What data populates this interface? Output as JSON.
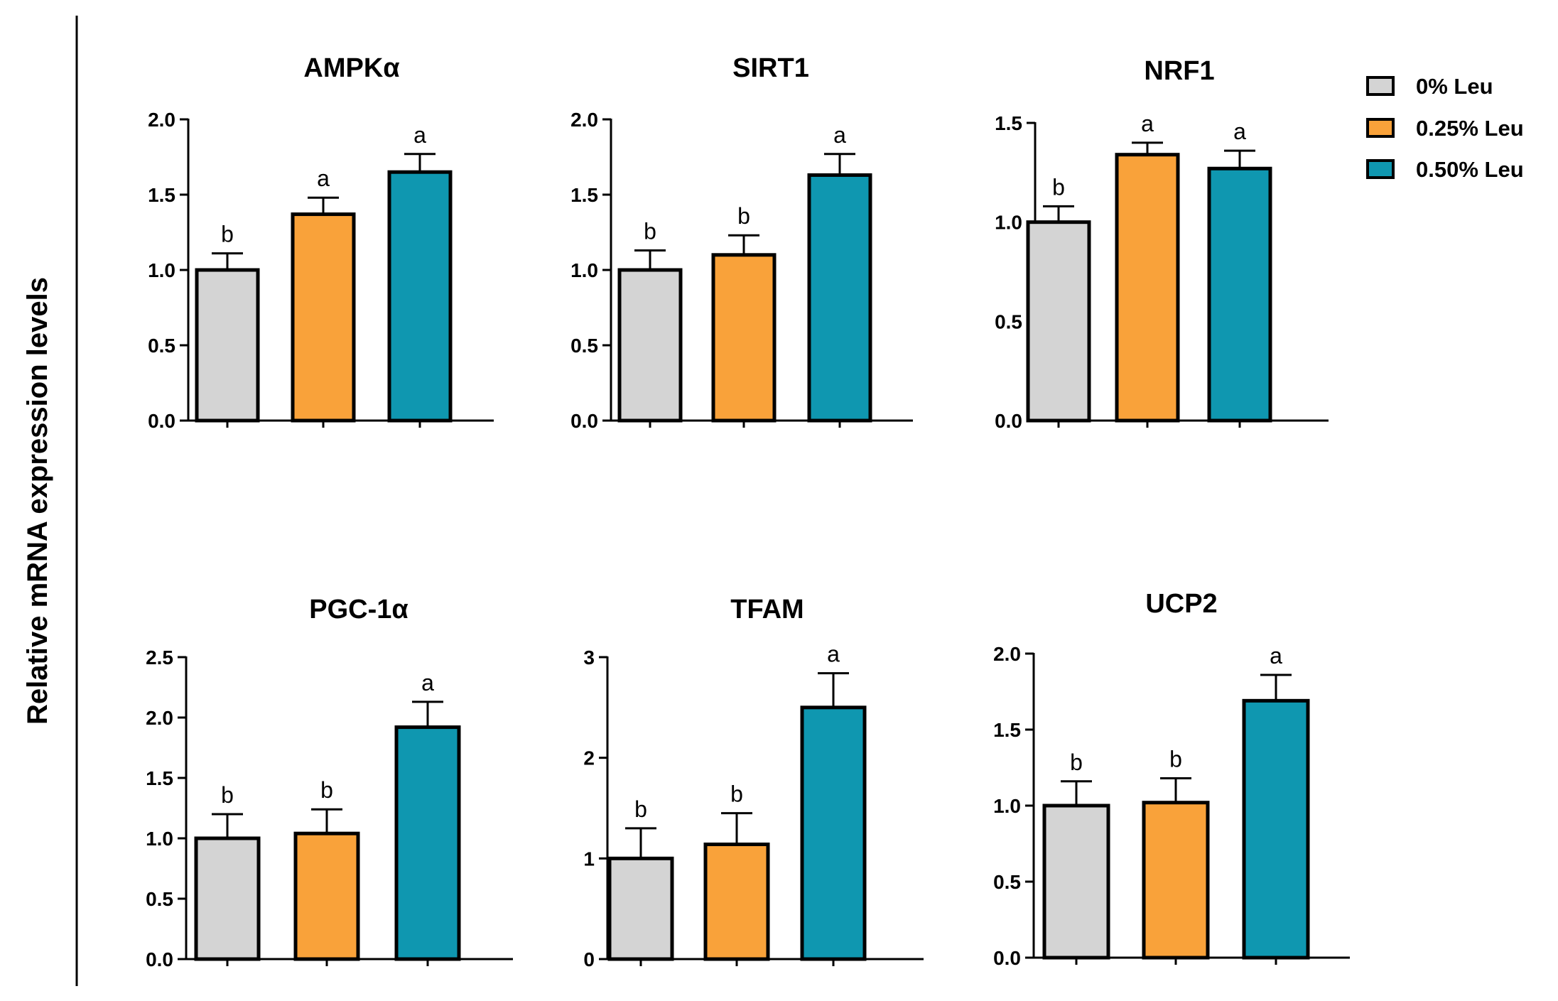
{
  "figure": {
    "ylabel": "Relative mRNA expression levels"
  },
  "legend": [
    {
      "label": "0% Leu",
      "color": "#d4d4d4"
    },
    {
      "label": "0.25% Leu",
      "color": "#f9a23a"
    },
    {
      "label": "0.50% Leu",
      "color": "#0f97b0"
    }
  ],
  "chart_data": [
    {
      "type": "bar",
      "title": "AMPKα",
      "categories": [
        "0% Leu",
        "0.25% Leu",
        "0.50% Leu"
      ],
      "values": [
        1.0,
        1.37,
        1.65
      ],
      "errors": [
        0.11,
        0.11,
        0.12
      ],
      "letters": [
        "b",
        "a",
        "a"
      ],
      "ylim": [
        0,
        2.0
      ],
      "yticks": [
        0.0,
        0.5,
        1.0,
        1.5,
        2.0
      ],
      "ytick_labels": [
        "0.0",
        "0.5",
        "1.0",
        "1.5",
        "2.0"
      ]
    },
    {
      "type": "bar",
      "title": "SIRT1",
      "categories": [
        "0% Leu",
        "0.25% Leu",
        "0.50% Leu"
      ],
      "values": [
        1.0,
        1.1,
        1.63
      ],
      "errors": [
        0.13,
        0.13,
        0.14
      ],
      "letters": [
        "b",
        "b",
        "a"
      ],
      "ylim": [
        0,
        2.0
      ],
      "yticks": [
        0.0,
        0.5,
        1.0,
        1.5,
        2.0
      ],
      "ytick_labels": [
        "0.0",
        "0.5",
        "1.0",
        "1.5",
        "2.0"
      ]
    },
    {
      "type": "bar",
      "title": "NRF1",
      "categories": [
        "0% Leu",
        "0.25% Leu",
        "0.50% Leu"
      ],
      "values": [
        1.0,
        1.34,
        1.27
      ],
      "errors": [
        0.08,
        0.06,
        0.09
      ],
      "letters": [
        "b",
        "a",
        "a"
      ],
      "ylim": [
        0,
        1.5
      ],
      "yticks": [
        0.0,
        0.5,
        1.0,
        1.5
      ],
      "ytick_labels": [
        "0.0",
        "0.5",
        "1.0",
        "1.5"
      ]
    },
    {
      "type": "bar",
      "title": "PGC-1α",
      "categories": [
        "0% Leu",
        "0.25% Leu",
        "0.50% Leu"
      ],
      "values": [
        1.0,
        1.04,
        1.92
      ],
      "errors": [
        0.2,
        0.2,
        0.21
      ],
      "letters": [
        "b",
        "b",
        "a"
      ],
      "ylim": [
        0,
        2.5
      ],
      "yticks": [
        0.0,
        0.5,
        1.0,
        1.5,
        2.0,
        2.5
      ],
      "ytick_labels": [
        "0.0",
        "0.5",
        "1.0",
        "1.5",
        "2.0",
        "2.5"
      ]
    },
    {
      "type": "bar",
      "title": "TFAM",
      "categories": [
        "0% Leu",
        "0.25% Leu",
        "0.50% Leu"
      ],
      "values": [
        1.0,
        1.14,
        2.5
      ],
      "errors": [
        0.3,
        0.31,
        0.34
      ],
      "letters": [
        "b",
        "b",
        "a"
      ],
      "ylim": [
        0,
        3
      ],
      "yticks": [
        0,
        1,
        2,
        3
      ],
      "ytick_labels": [
        "0",
        "1",
        "2",
        "3"
      ]
    },
    {
      "type": "bar",
      "title": "UCP2",
      "categories": [
        "0% Leu",
        "0.25% Leu",
        "0.50% Leu"
      ],
      "values": [
        1.0,
        1.02,
        1.69
      ],
      "errors": [
        0.16,
        0.16,
        0.17
      ],
      "letters": [
        "b",
        "b",
        "a"
      ],
      "ylim": [
        0,
        2.0
      ],
      "yticks": [
        0.0,
        0.5,
        1.0,
        1.5,
        2.0
      ],
      "ytick_labels": [
        "0.0",
        "0.5",
        "1.0",
        "1.5",
        "2.0"
      ]
    }
  ]
}
